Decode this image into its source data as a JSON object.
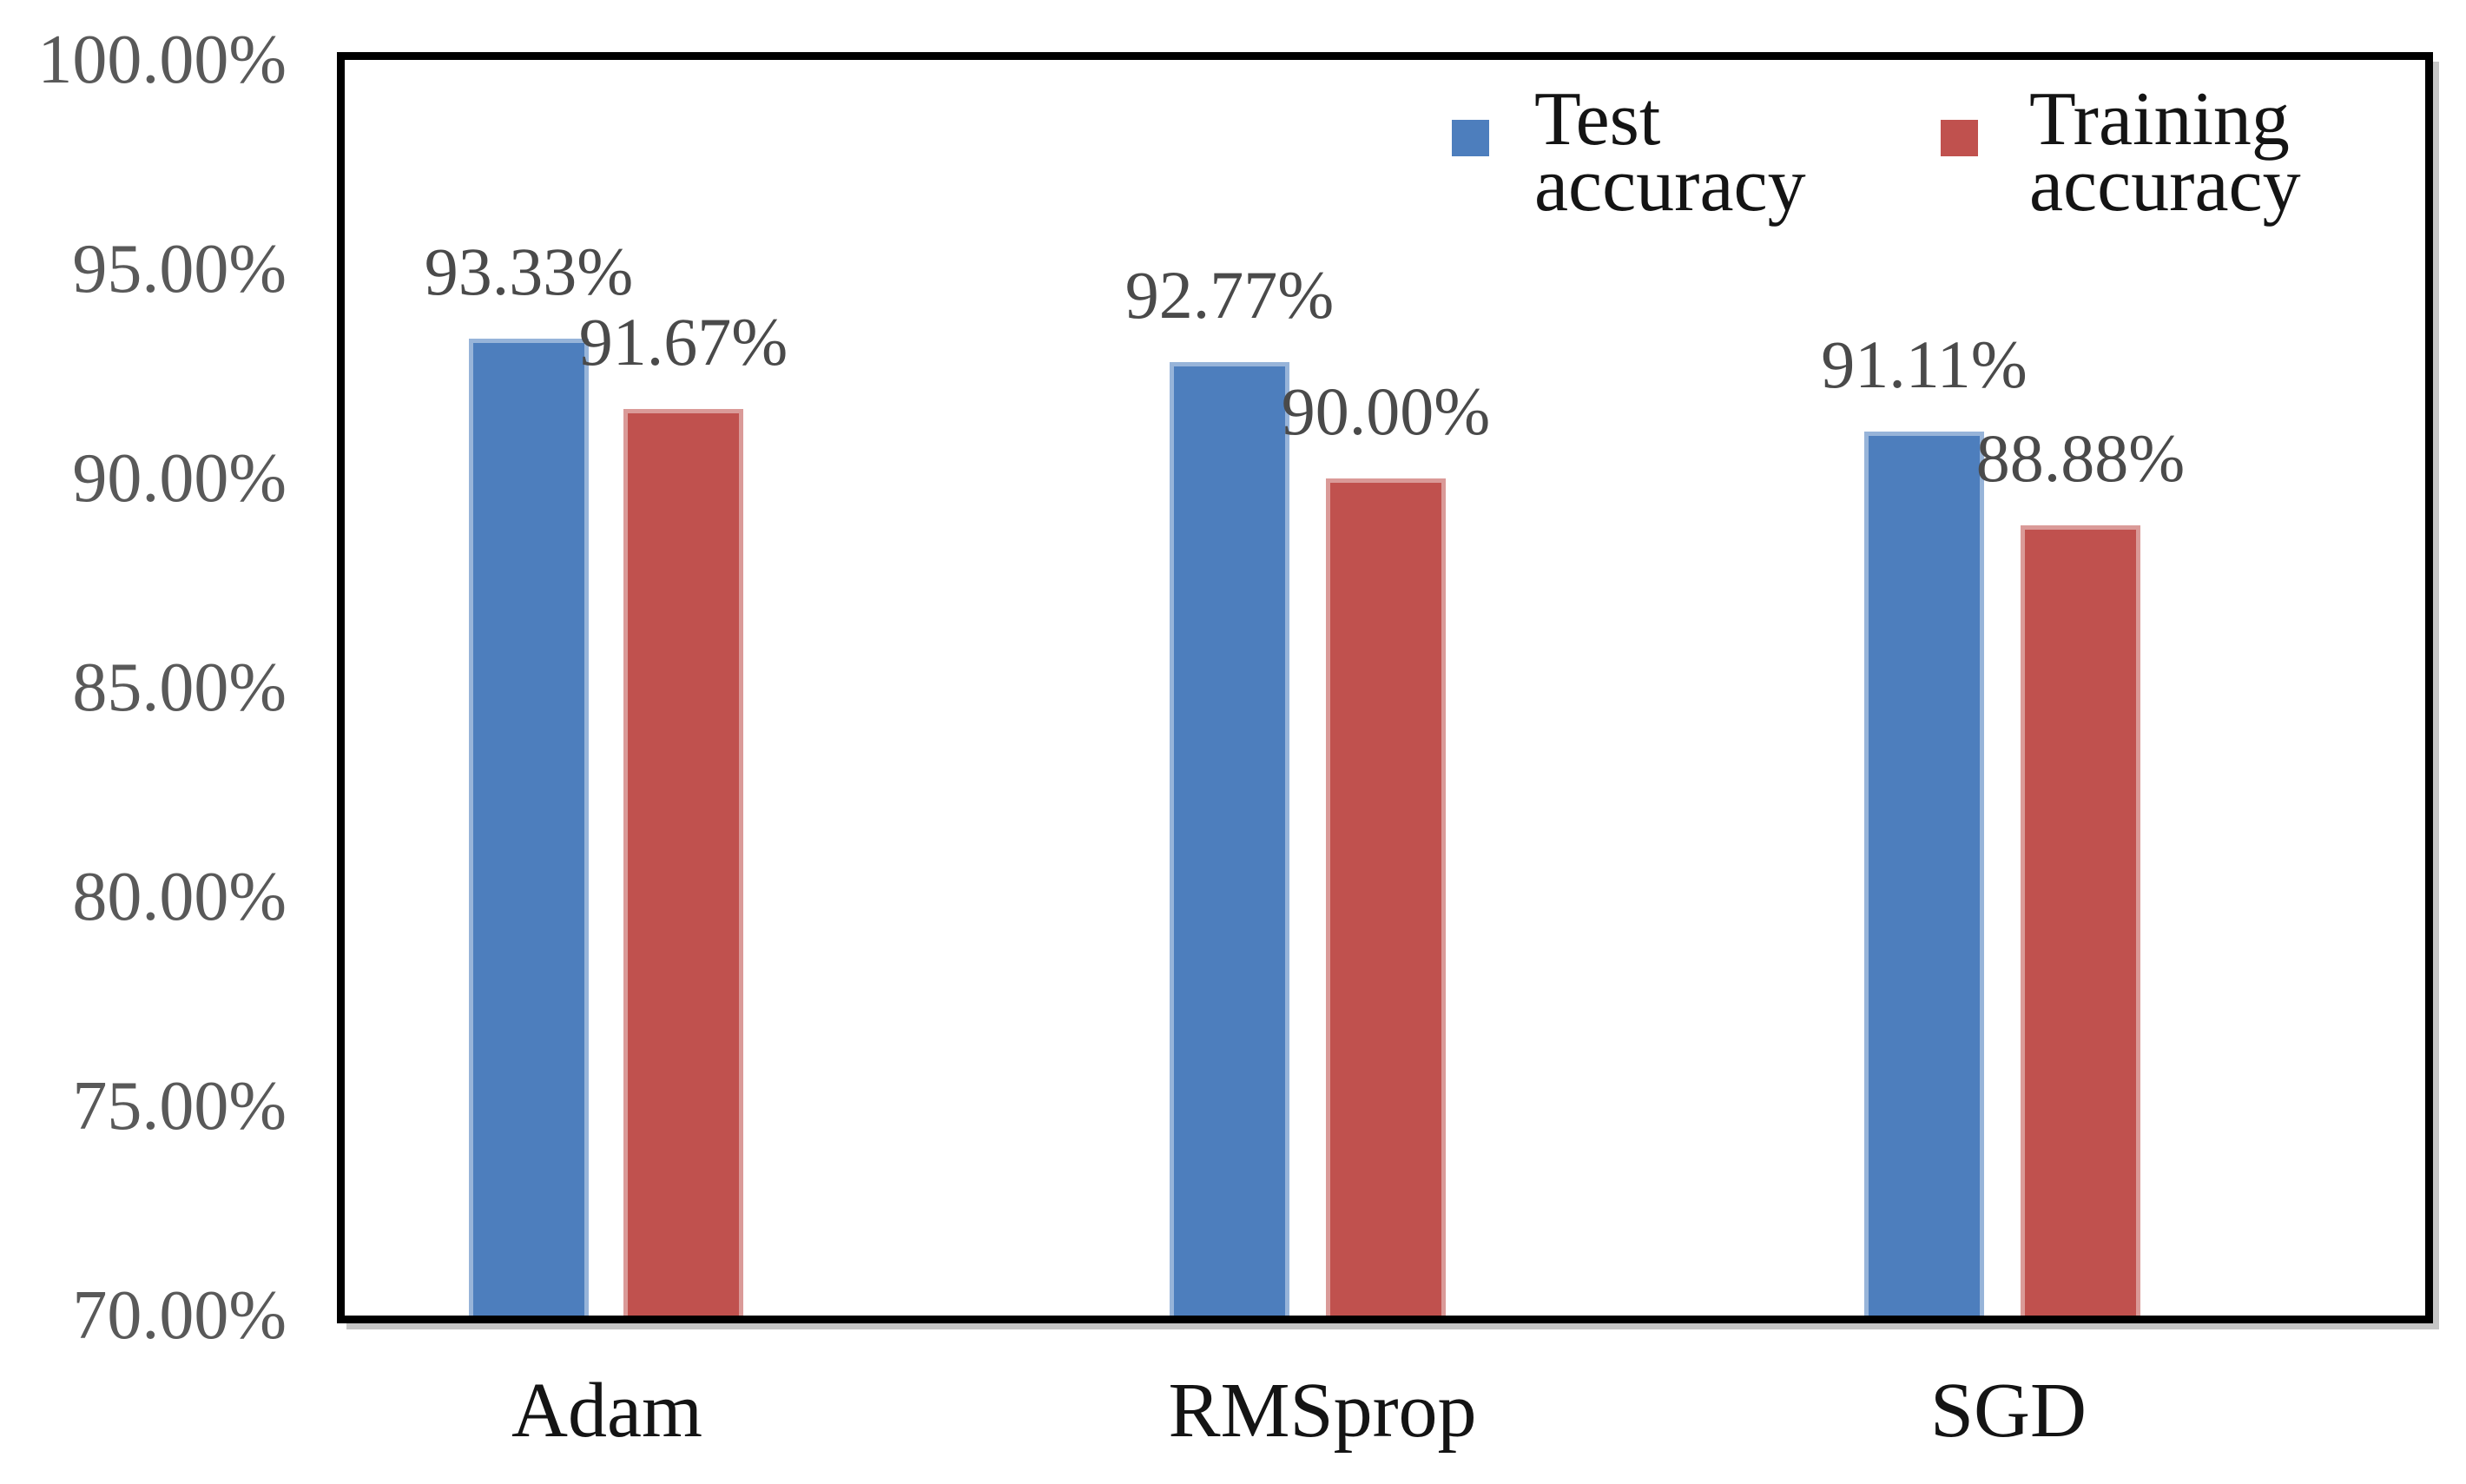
{
  "chart_data": {
    "type": "bar",
    "title": "",
    "xlabel": "",
    "ylabel": "",
    "categories": [
      "Adam",
      "RMSprop",
      "SGD"
    ],
    "series": [
      {
        "name": "Test accuracy",
        "color": "#4d7ebd",
        "values": [
          93.33,
          92.77,
          91.11
        ],
        "data_labels": [
          "93.33%",
          "92.77%",
          "91.11%"
        ]
      },
      {
        "name": "Training accuracy",
        "color": "#c0514e",
        "values": [
          91.67,
          90.0,
          88.88
        ],
        "data_labels": [
          "91.67%",
          "90.00%",
          "88.88%"
        ]
      }
    ],
    "y_axis": {
      "min": 70,
      "max": 100,
      "step": 5,
      "tick_labels": [
        "70.00%",
        "75.00%",
        "80.00%",
        "85.00%",
        "90.00%",
        "95.00%",
        "100.00%"
      ]
    },
    "x_axis": {
      "tick_labels": [
        "Adam",
        "RMSprop",
        "SGD"
      ]
    },
    "legend": {
      "position": "top-right-inside",
      "entries": [
        "Test accuracy",
        "Training accuracy"
      ]
    },
    "grid": false
  },
  "colors": {
    "test_bar": "#4d7ebd",
    "training_bar": "#c0514e",
    "axis_border": "#000000",
    "axis_shadow": "#c6c6c6",
    "y_tick_text": "#595959",
    "data_label_text": "#4a4a4a",
    "x_tick_text": "#141414",
    "legend_text": "#141414"
  }
}
